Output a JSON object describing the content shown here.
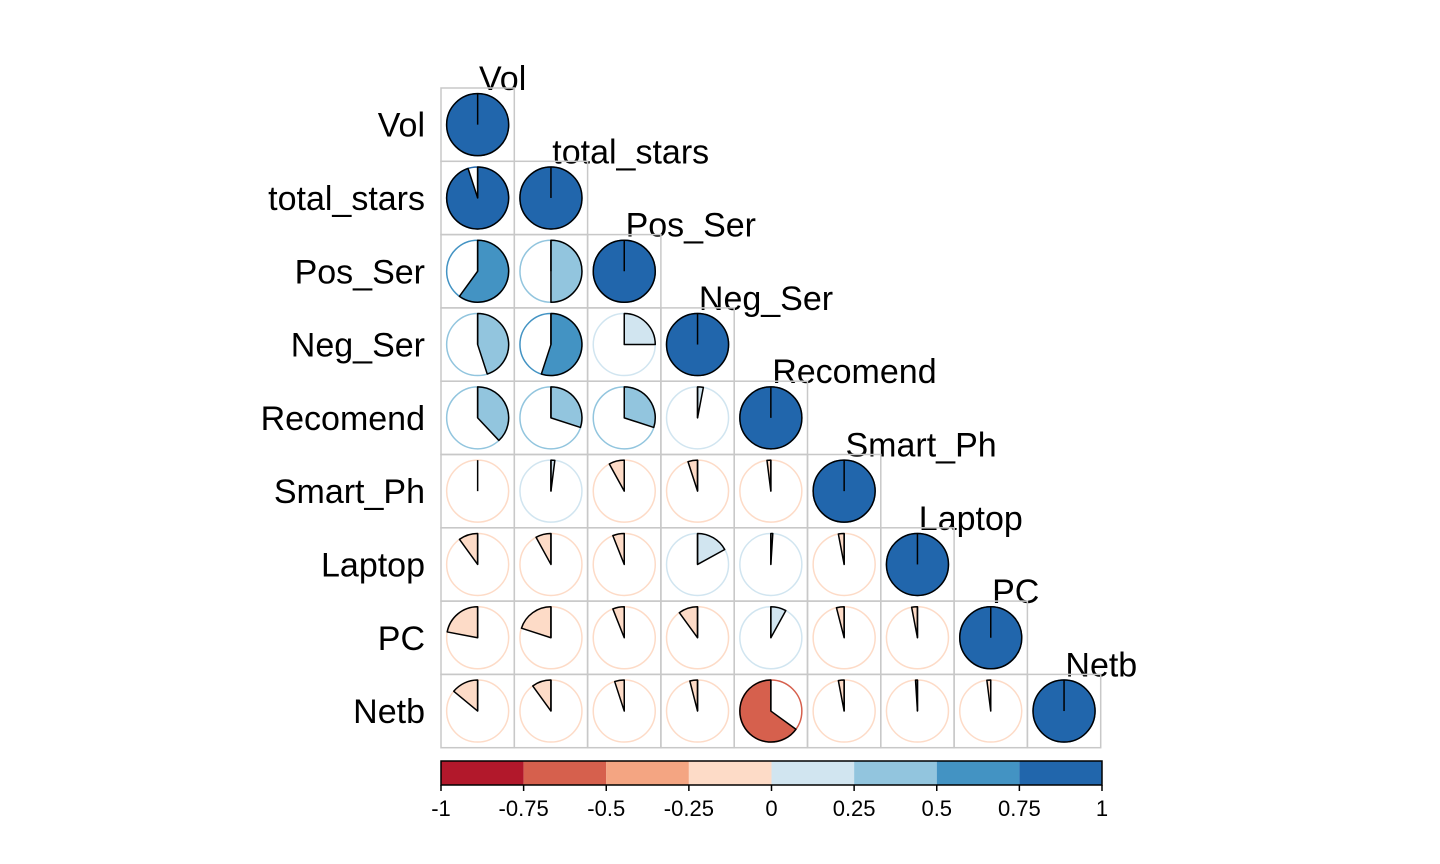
{
  "chart_data": {
    "type": "heatmap",
    "variables": [
      "Vol",
      "total_stars",
      "Pos_Ser",
      "Neg_Ser",
      "Recomend",
      "Smart_Ph",
      "Laptop",
      "PC",
      "Netb"
    ],
    "matrix": [
      [
        1.0,
        0.95,
        0.6,
        0.45,
        0.38,
        0.0,
        -0.1,
        -0.22,
        -0.14
      ],
      [
        0.95,
        1.0,
        0.5,
        0.55,
        0.3,
        0.02,
        -0.08,
        -0.2,
        -0.1
      ],
      [
        0.6,
        0.5,
        1.0,
        0.25,
        0.3,
        -0.08,
        -0.06,
        -0.06,
        -0.05
      ],
      [
        0.45,
        0.55,
        0.25,
        1.0,
        0.03,
        -0.05,
        0.17,
        -0.1,
        -0.04
      ],
      [
        0.38,
        0.3,
        0.3,
        0.03,
        1.0,
        -0.02,
        0.01,
        0.08,
        -0.65
      ],
      [
        0.0,
        0.02,
        -0.08,
        -0.05,
        -0.02,
        1.0,
        -0.03,
        -0.04,
        -0.03
      ],
      [
        -0.1,
        -0.08,
        -0.06,
        0.17,
        0.01,
        -0.03,
        1.0,
        -0.03,
        -0.01
      ],
      [
        -0.22,
        -0.2,
        -0.06,
        -0.1,
        0.08,
        -0.04,
        -0.03,
        1.0,
        -0.02
      ],
      [
        -0.14,
        -0.1,
        -0.05,
        -0.04,
        -0.65,
        -0.03,
        -0.01,
        -0.02,
        1.0
      ]
    ],
    "color_scale": {
      "breaks": [
        -1,
        -0.75,
        -0.5,
        -0.25,
        0,
        0.25,
        0.5,
        0.75,
        1
      ],
      "tick_labels": [
        "-1",
        "-0.75",
        "-0.5",
        "-0.25",
        "0",
        "0.25",
        "0.5",
        "0.75",
        "1"
      ],
      "colors": [
        "#B2182B",
        "#D6604D",
        "#F4A582",
        "#FDDBC7",
        "#D1E5F0",
        "#92C5DE",
        "#4393C3",
        "#2166AC"
      ]
    },
    "layout": "lower-triangle",
    "method": "pie",
    "grid": true,
    "legend": "bottom"
  }
}
